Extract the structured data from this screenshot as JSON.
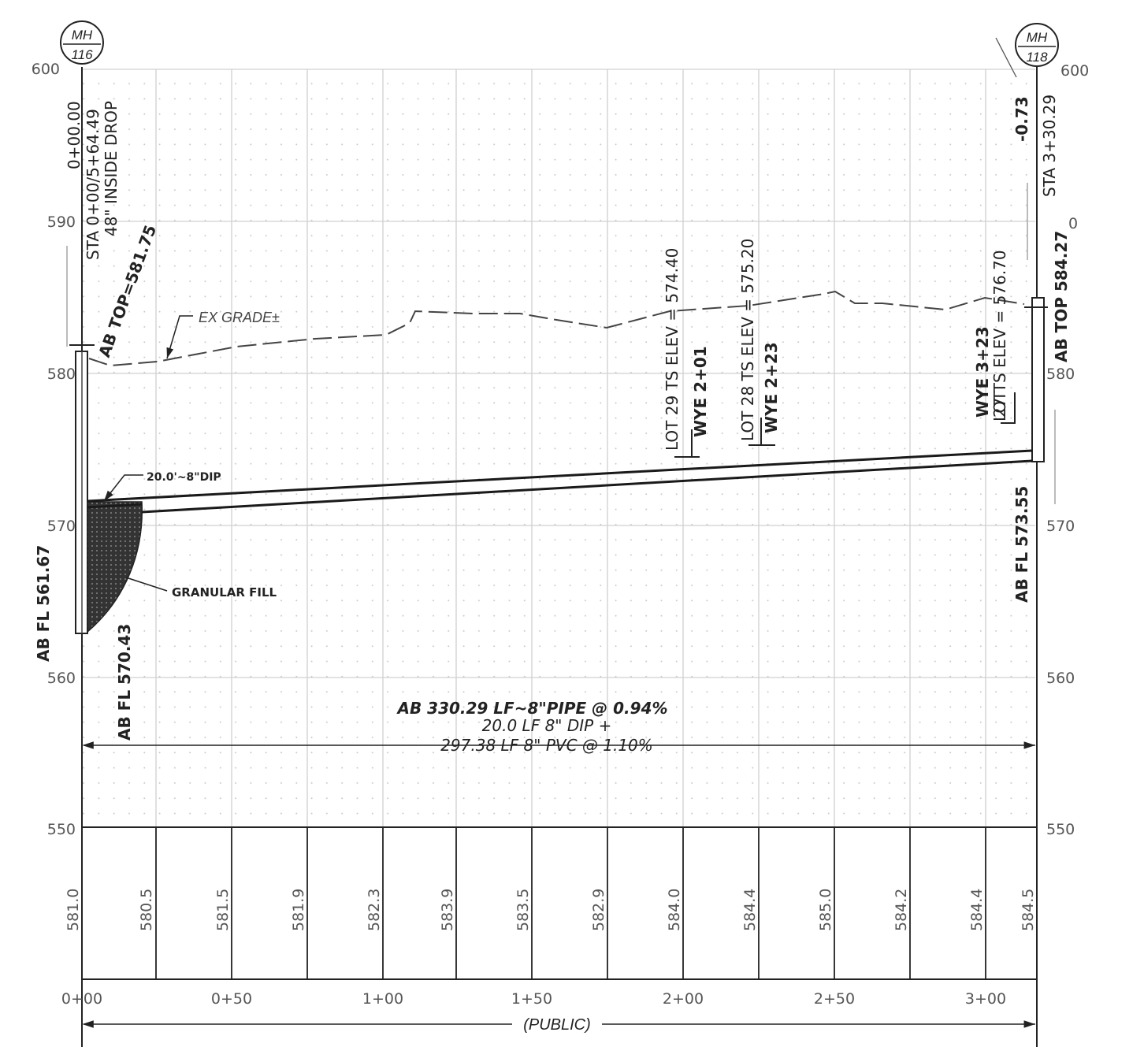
{
  "manholes": {
    "left": {
      "line1": "MH",
      "line2": "116"
    },
    "right": {
      "line1": "MH",
      "line2": "118"
    }
  },
  "elevation_axis": {
    "left_ticks": [
      "600",
      "590",
      "580",
      "570",
      "560",
      "550"
    ],
    "right_ticks": [
      "600",
      "580",
      "570",
      "560",
      "550"
    ],
    "right_tick_590_obscured": "0"
  },
  "left_labels": {
    "station_zero": "0+00.00",
    "sta": "STA 0+00/5+64.49",
    "inside_drop": "48\" INSIDE DROP",
    "ab_top": "AB TOP=581.75",
    "ab_fl_low": "AB FL 561.67",
    "ab_fl_high": "AB FL 570.43"
  },
  "right_labels": {
    "sta": "STA 3+30.29",
    "offset": "-0.73",
    "ab_top": "AB TOP 584.27",
    "ab_fl": "AB FL 573.55",
    "ts_elev": "27 TS ELEV = 576.70",
    "lot": "LOT",
    "wye": "WYE 3+23"
  },
  "mid_labels": {
    "lot29": "LOT 29 TS ELEV = 574.40",
    "wye29": "WYE 2+01",
    "lot28": "LOT 28 TS ELEV = 575.20",
    "wye28": "WYE 2+23"
  },
  "callouts": {
    "ex_grade": "EX GRADE±",
    "dip": "20.0'~8\"DIP",
    "granular_fill": "GRANULAR FILL"
  },
  "pipe_notes": {
    "line1": "AB 330.29 LF~8\"PIPE @ 0.94%",
    "line2": "20.0 LF 8\" DIP +",
    "line3": "297.38 LF 8\" PVC @ 1.10%"
  },
  "ground_elevations": [
    "581.0",
    "580.5",
    "581.5",
    "581.9",
    "582.3",
    "583.9",
    "583.5",
    "582.9",
    "584.0",
    "584.4",
    "585.0",
    "584.2",
    "584.4",
    "584.5"
  ],
  "stations": [
    "0+00",
    "0+50",
    "1+00",
    "1+50",
    "2+00",
    "2+50",
    "3+00"
  ],
  "footer": {
    "public": "(PUBLIC)"
  },
  "colors": {
    "ink": "#1a1a1a",
    "grid": "#d4d4d4",
    "fill": "#2b2b2b"
  }
}
